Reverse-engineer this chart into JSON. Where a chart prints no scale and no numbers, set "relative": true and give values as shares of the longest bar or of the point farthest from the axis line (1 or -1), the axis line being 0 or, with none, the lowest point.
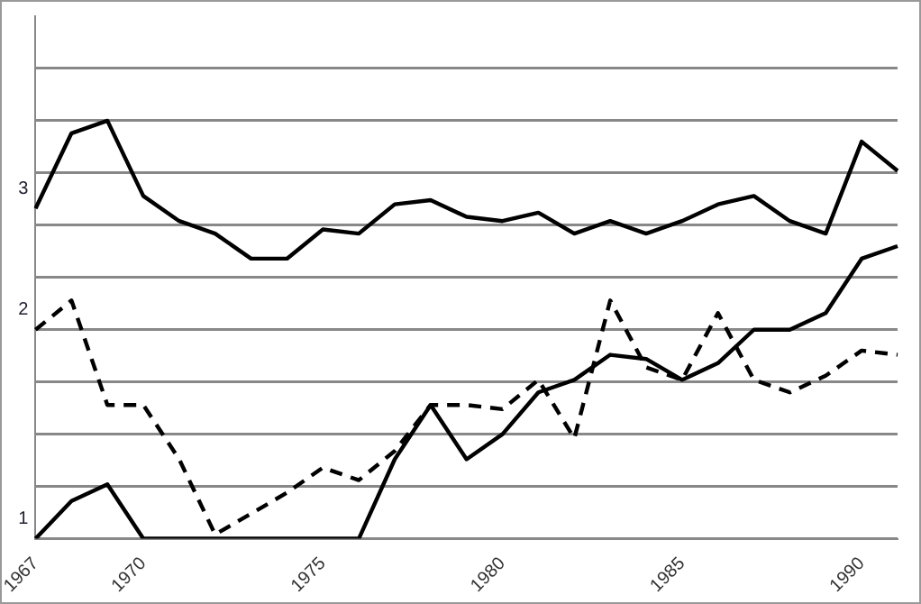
{
  "chart_data": {
    "type": "line",
    "relative": true,
    "grid": "y",
    "legend": false,
    "marker": "none",
    "categories": [
      "1967",
      null,
      null,
      "1970",
      null,
      null,
      null,
      null,
      "1975",
      null,
      null,
      null,
      null,
      "1980",
      null,
      null,
      null,
      null,
      "1985",
      null,
      null,
      null,
      null,
      "1990",
      null
    ],
    "series": [
      {
        "name": "1",
        "color": "#000000",
        "line_style": "solid",
        "values": [
          0,
          0.09,
          0.13,
          0,
          0,
          0,
          0,
          0,
          0,
          0,
          0.19,
          0.32,
          0.19,
          0.25,
          0.35,
          0.38,
          0.44,
          0.43,
          0.38,
          0.42,
          0.5,
          0.5,
          0.54,
          0.67,
          0.7
        ]
      },
      {
        "name": "2",
        "color": "#000000",
        "line_style": "dashed",
        "values": [
          0.5,
          0.57,
          0.32,
          0.32,
          0.19,
          0.01,
          0.06,
          0.11,
          0.17,
          0.14,
          0.21,
          0.32,
          0.32,
          0.31,
          0.38,
          0.24,
          0.57,
          0.41,
          0.38,
          0.54,
          0.38,
          0.35,
          0.39,
          0.45,
          0.44
        ]
      },
      {
        "name": "3",
        "color": "#000000",
        "line_style": "solid",
        "values": [
          0.79,
          0.97,
          1,
          0.82,
          0.76,
          0.73,
          0.67,
          0.67,
          0.74,
          0.73,
          0.8,
          0.81,
          0.77,
          0.76,
          0.78,
          0.73,
          0.76,
          0.73,
          0.76,
          0.8,
          0.82,
          0.76,
          0.73,
          0.95,
          0.88
        ]
      }
    ]
  }
}
